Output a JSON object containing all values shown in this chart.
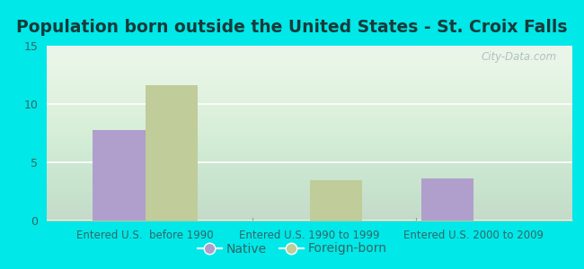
{
  "title": "Population born outside the United States - St. Croix Falls",
  "categories": [
    "Entered U.S.  before 1990",
    "Entered U.S. 1990 to 1999",
    "Entered U.S. 2000 to 2009"
  ],
  "native_values": [
    7.8,
    0,
    3.6
  ],
  "foreign_values": [
    11.6,
    3.5,
    0
  ],
  "native_color": "#b09fcc",
  "foreign_color": "#c0cc99",
  "ylim": [
    0,
    15
  ],
  "yticks": [
    0,
    5,
    10,
    15
  ],
  "background_outer": "#00e8e8",
  "background_plot_top": "#e8f5e8",
  "background_plot_bottom": "#d0eedc",
  "bar_width": 0.32,
  "title_fontsize": 13.5,
  "axis_label_fontsize": 8.5,
  "tick_fontsize": 9,
  "legend_fontsize": 10,
  "watermark": "City-Data.com",
  "grid_color": "#e0ece0",
  "tick_color": "#336666"
}
